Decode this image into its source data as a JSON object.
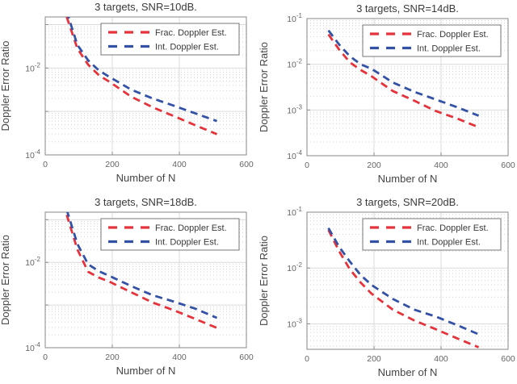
{
  "figure": {
    "background": "#ffffff"
  },
  "colors": {
    "frac_series": "#e5333b",
    "int_series": "#3351a5",
    "grid_major": "#dbdbdb",
    "grid_minor": "#d4d4d4",
    "axis_frame": "#8a8a8a",
    "tick_label": "#666666",
    "title_text": "#3a3a3a",
    "axis_label_text": "#454545",
    "legend_border": "#777777",
    "legend_background": "#ffffff",
    "legend_text": "#3a3a3a"
  },
  "legend": {
    "entries": [
      {
        "label": "Frac. Doppler Est.",
        "color_key": "frac_series",
        "style": "dashed"
      },
      {
        "label": "Int. Doppler Est.",
        "color_key": "int_series",
        "style": "dashed"
      }
    ],
    "position": "top-right"
  },
  "chart_data": [
    {
      "type": "line",
      "title": "3 targets, SNR=10dB.",
      "snr_db": 10,
      "xlabel": "Number of N",
      "ylabel": "Doppler Error Ratio",
      "xscale": "linear",
      "yscale": "log",
      "xlim": [
        0,
        600
      ],
      "ylim": [
        0.0001,
        0.15
      ],
      "xticks": [
        0,
        200,
        400,
        600
      ],
      "ytick_labeled_exponents": [
        -2,
        -4
      ],
      "grid": "major+minor",
      "x": [
        64,
        96,
        128,
        160,
        192,
        256,
        320,
        384,
        448,
        512
      ],
      "series": [
        {
          "name": "Frac. Doppler Est.",
          "color_key": "frac_series",
          "values": [
            0.15,
            0.028,
            0.012,
            0.0068,
            0.0048,
            0.0022,
            0.00125,
            0.00078,
            0.00048,
            0.0003
          ]
        },
        {
          "name": "Int. Doppler Est.",
          "color_key": "int_series",
          "values": [
            0.2,
            0.034,
            0.015,
            0.0088,
            0.0062,
            0.0032,
            0.002,
            0.00135,
            0.0009,
            0.0006
          ]
        }
      ]
    },
    {
      "type": "line",
      "title": "3 targets, SNR=14dB.",
      "snr_db": 14,
      "xlabel": "Number of N",
      "ylabel": "Doppler Error Ratio",
      "xscale": "linear",
      "yscale": "log",
      "xlim": [
        0,
        600
      ],
      "ylim": [
        0.0001,
        0.1
      ],
      "xticks": [
        0,
        200,
        400,
        600
      ],
      "ytick_labeled_exponents": [
        -1,
        -2,
        -3,
        -4
      ],
      "grid": "major+minor",
      "x": [
        64,
        96,
        128,
        160,
        192,
        256,
        320,
        384,
        448,
        512
      ],
      "series": [
        {
          "name": "Frac. Doppler Est.",
          "color_key": "frac_series",
          "values": [
            0.045,
            0.021,
            0.011,
            0.0075,
            0.0055,
            0.0026,
            0.0016,
            0.00095,
            0.00065,
            0.00042
          ]
        },
        {
          "name": "Int. Doppler Est.",
          "color_key": "int_series",
          "values": [
            0.055,
            0.027,
            0.015,
            0.01,
            0.008,
            0.004,
            0.0025,
            0.0017,
            0.00115,
            0.00075
          ]
        }
      ]
    },
    {
      "type": "line",
      "title": "3 targets, SNR=18dB.",
      "snr_db": 18,
      "xlabel": "Number of N",
      "ylabel": "Doppler Error Ratio",
      "xscale": "linear",
      "yscale": "log",
      "xlim": [
        0,
        600
      ],
      "ylim": [
        0.0001,
        0.15
      ],
      "xticks": [
        0,
        200,
        400,
        600
      ],
      "ytick_labeled_exponents": [
        -2,
        -4
      ],
      "grid": "major+minor",
      "x": [
        64,
        96,
        128,
        160,
        192,
        256,
        320,
        384,
        448,
        512
      ],
      "series": [
        {
          "name": "Frac. Doppler Est.",
          "color_key": "frac_series",
          "values": [
            0.13,
            0.02,
            0.006,
            0.0044,
            0.0035,
            0.002,
            0.00115,
            0.00075,
            0.00047,
            0.00029
          ]
        },
        {
          "name": "Int. Doppler Est.",
          "color_key": "int_series",
          "values": [
            0.17,
            0.027,
            0.009,
            0.0062,
            0.0048,
            0.0028,
            0.0017,
            0.0012,
            0.00082,
            0.0005
          ]
        }
      ]
    },
    {
      "type": "line",
      "title": "3 targets, SNR=20dB.",
      "snr_db": 20,
      "xlabel": "Number of N",
      "ylabel": "Doppler Error Ratio",
      "xscale": "linear",
      "yscale": "log",
      "xlim": [
        0,
        600
      ],
      "ylim": [
        0.00035,
        0.1
      ],
      "xticks": [
        0,
        200,
        400,
        600
      ],
      "ytick_labeled_exponents": [
        -1,
        -2,
        -3
      ],
      "grid": "major+minor",
      "x": [
        64,
        96,
        128,
        160,
        192,
        256,
        320,
        384,
        448,
        512
      ],
      "series": [
        {
          "name": "Frac. Doppler Est.",
          "color_key": "frac_series",
          "values": [
            0.048,
            0.02,
            0.0095,
            0.0055,
            0.0035,
            0.0018,
            0.00115,
            0.0008,
            0.00055,
            0.00038
          ]
        },
        {
          "name": "Int. Doppler Est.",
          "color_key": "int_series",
          "values": [
            0.052,
            0.024,
            0.013,
            0.0075,
            0.005,
            0.0028,
            0.0018,
            0.00135,
            0.00095,
            0.00065
          ]
        }
      ]
    }
  ]
}
